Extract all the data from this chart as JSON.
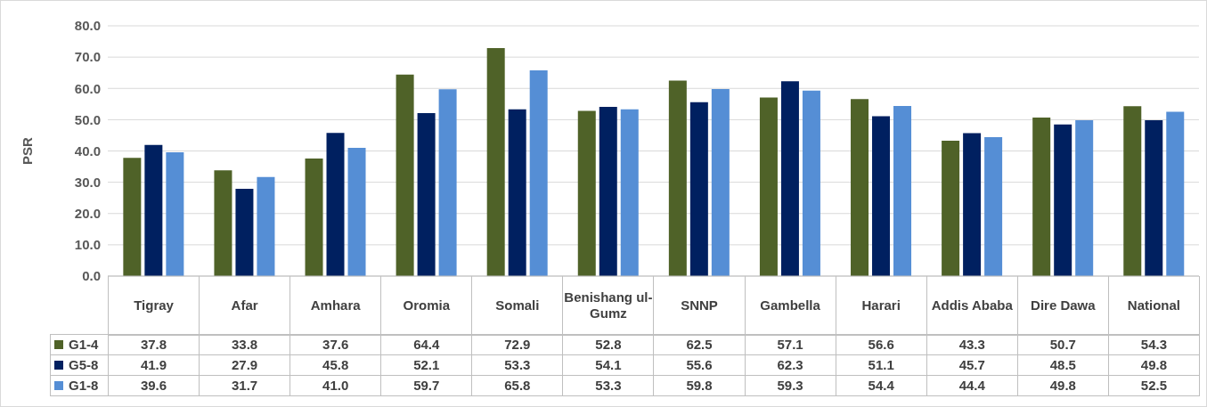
{
  "chart_data": {
    "type": "bar",
    "ylabel": "PSR",
    "categories": [
      "Tigray",
      "Afar",
      "Amhara",
      "Oromia",
      "Somali",
      "Benishang ul-Gumz",
      "SNNP",
      "Gambella",
      "Harari",
      "Addis Ababa",
      "Dire Dawa",
      "National"
    ],
    "series": [
      {
        "name": "G1-4",
        "color": "#4f6228",
        "values": [
          37.8,
          33.8,
          37.6,
          64.4,
          72.9,
          52.8,
          62.5,
          57.1,
          56.6,
          43.3,
          50.7,
          54.3
        ],
        "value_labels": [
          "37.8",
          "33.8",
          "37.6",
          "64.4",
          "72.9",
          "52.8",
          "62.5",
          "57.1",
          "56.6",
          "43.3",
          "50.7",
          "54.3"
        ]
      },
      {
        "name": "G5-8",
        "color": "#002060",
        "values": [
          41.9,
          27.9,
          45.8,
          52.1,
          53.3,
          54.1,
          55.6,
          62.3,
          51.1,
          45.7,
          48.5,
          49.8
        ],
        "value_labels": [
          "41.9",
          "27.9",
          "45.8",
          "52.1",
          "53.3",
          "54.1",
          "55.6",
          "62.3",
          "51.1",
          "45.7",
          "48.5",
          "49.8"
        ]
      },
      {
        "name": "G1-8",
        "color": "#558ed5",
        "values": [
          39.6,
          31.7,
          41.0,
          59.7,
          65.8,
          53.3,
          59.8,
          59.3,
          54.4,
          44.4,
          49.8,
          52.5
        ],
        "value_labels": [
          "39.6",
          "31.7",
          "41.0",
          "59.7",
          "65.8",
          "53.3",
          "59.8",
          "59.3",
          "54.4",
          "44.4",
          "49.8",
          "52.5"
        ]
      }
    ],
    "ylim": [
      0,
      80
    ],
    "yticks": [
      {
        "value": 0,
        "label": "0.0"
      },
      {
        "value": 10,
        "label": "10.0"
      },
      {
        "value": 20,
        "label": "20.0"
      },
      {
        "value": 30,
        "label": "30.0"
      },
      {
        "value": 40,
        "label": "40.0"
      },
      {
        "value": 50,
        "label": "50.0"
      },
      {
        "value": 60,
        "label": "60.0"
      },
      {
        "value": 70,
        "label": "70.0"
      },
      {
        "value": 80,
        "label": "80.0"
      }
    ],
    "grid": "y",
    "legend": "bottom"
  }
}
